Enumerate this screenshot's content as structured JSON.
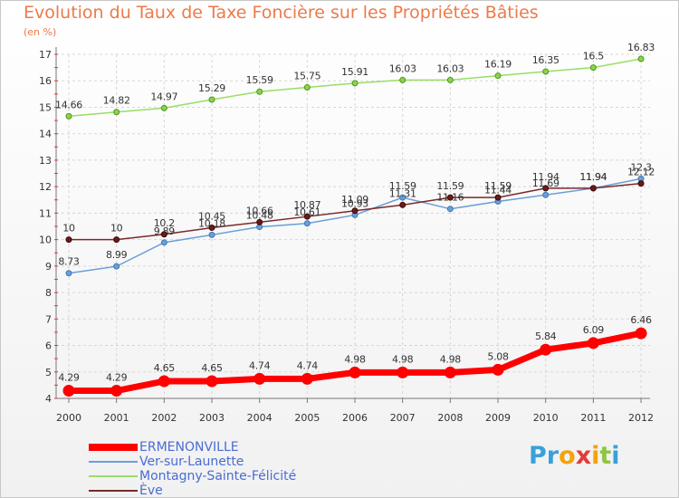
{
  "title": "Evolution du Taux de Taxe Foncière sur les Propriétés Bâties",
  "unit_label": "(en %)",
  "logo": {
    "letters": [
      "P",
      "r",
      "o",
      "x",
      "i",
      "t",
      "i"
    ],
    "colors": [
      "#3aa0d8",
      "#3aa0d8",
      "#f5a20a",
      "#e33b3b",
      "#f5a20a",
      "#8dc63f",
      "#3aa0d8"
    ]
  },
  "chart_data": {
    "type": "line",
    "title": "Evolution du Taux de Taxe Foncière sur les Propriétés Bâties",
    "ylabel": "(en %)",
    "xlabel": "",
    "ylim": [
      4,
      17
    ],
    "yticks": [
      "4",
      "5",
      "6",
      "7",
      "8",
      "9",
      "10",
      "11",
      "12",
      "13",
      "14",
      "15",
      "16",
      "17"
    ],
    "grid": true,
    "legend_position": "bottom-left",
    "categories": [
      "2000",
      "2001",
      "2002",
      "2003",
      "2004",
      "2005",
      "2006",
      "2007",
      "2008",
      "2009",
      "2010",
      "2011",
      "2012"
    ],
    "series": [
      {
        "name": "ERMENONVILLE",
        "color": "#ff0000",
        "values": [
          4.29,
          4.29,
          4.65,
          4.65,
          4.74,
          4.74,
          4.98,
          4.98,
          4.98,
          5.08,
          5.84,
          6.09,
          6.46
        ],
        "labels": [
          "4.29",
          "4.29",
          "4.65",
          "4.65",
          "4.74",
          "4.74",
          "4.98",
          "4.98",
          "4.98",
          "5.08",
          "5.84",
          "6.09",
          "6.46"
        ]
      },
      {
        "name": "Ver-sur-Launette",
        "color": "#6a9fd8",
        "values": [
          8.73,
          8.99,
          9.89,
          10.18,
          10.48,
          10.61,
          10.93,
          11.59,
          11.16,
          11.44,
          11.69,
          11.94,
          12.3
        ],
        "labels": [
          "8.73",
          "8.99",
          "9.89",
          "10.18",
          "10.48",
          "10.61",
          "10.93",
          "11.59",
          "11.16",
          "11.44",
          "11.69",
          "11.94",
          "12.3"
        ]
      },
      {
        "name": "Montagny-Sainte-Félicité",
        "color": "#99dd66",
        "values": [
          14.66,
          14.82,
          14.97,
          15.29,
          15.59,
          15.75,
          15.91,
          16.03,
          16.03,
          16.19,
          16.35,
          16.5,
          16.83
        ],
        "labels": [
          "14.66",
          "14.82",
          "14.97",
          "15.29",
          "15.59",
          "15.75",
          "15.91",
          "16.03",
          "16.03",
          "16.19",
          "16.35",
          "16.5",
          "16.83"
        ]
      },
      {
        "name": "Ève",
        "color": "#7a2a2a",
        "values": [
          10,
          10,
          10.2,
          10.45,
          10.66,
          10.87,
          11.09,
          11.31,
          11.59,
          11.59,
          11.94,
          11.94,
          12.12
        ],
        "labels": [
          "10",
          "10",
          "10.2",
          "10.45",
          "10.66",
          "10.87",
          "11.09",
          "11.31",
          "11.59",
          "11.59",
          "11.94",
          "11.94",
          "12.12"
        ]
      }
    ]
  }
}
